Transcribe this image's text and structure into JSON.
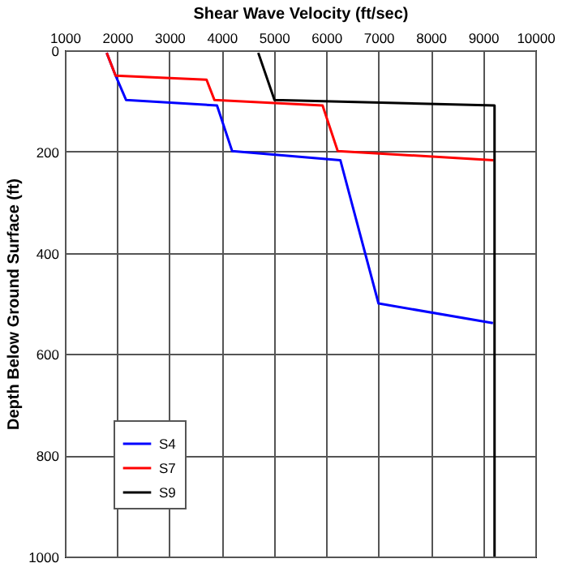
{
  "chart_data": {
    "type": "line",
    "xlabel": "Shear Wave Velocity (ft/sec)",
    "ylabel": "Depth Below Ground Surface (ft)",
    "xlim": [
      1000,
      10000
    ],
    "xticks": [
      1000,
      2000,
      3000,
      4000,
      5000,
      6000,
      7000,
      8000,
      9000,
      10000
    ],
    "ylim": [
      1000,
      0
    ],
    "yticks": [
      0,
      200,
      400,
      600,
      800,
      1000
    ],
    "grid": true,
    "legend": "bottom left",
    "series": [
      {
        "name": "S4",
        "color": "#0000ff",
        "x": [
          1800,
          1970,
          2170,
          3910,
          4200,
          6270,
          7000,
          9190
        ],
        "values": [
          5,
          50,
          98,
          109,
          199,
          217,
          500,
          539
        ]
      },
      {
        "name": "S7",
        "color": "#ff0000",
        "x": [
          1800,
          1970,
          3710,
          3860,
          5930,
          6220,
          9200
        ],
        "values": [
          5,
          50,
          58,
          98,
          109,
          199,
          217
        ]
      },
      {
        "name": "S9",
        "color": "#000000",
        "x": [
          4700,
          5010,
          9220,
          9220
        ],
        "values": [
          5,
          98,
          109,
          1000
        ]
      }
    ]
  }
}
